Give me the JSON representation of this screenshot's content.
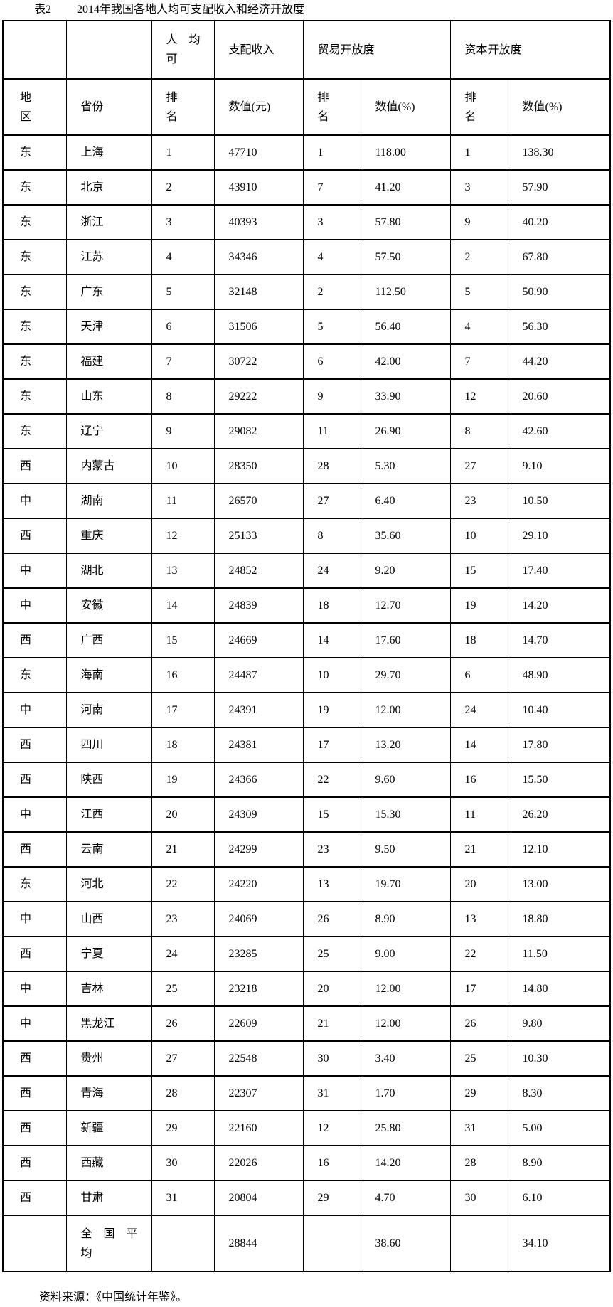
{
  "title": {
    "label": "表2",
    "text": "2014年我国各地人均可支配收入和经济开放度"
  },
  "table": {
    "header_top": {
      "income_part1": "人　均\n可",
      "income_part2": "支配收入",
      "trade": "贸易开放度",
      "capital": "资本开放度"
    },
    "header": {
      "region": "地\n区",
      "province": "省份",
      "rank": "排\n名",
      "value_yuan": "数值(元)",
      "value_pct": "数值(%)"
    },
    "rows": [
      {
        "region": "东",
        "province": "上海",
        "income_rank": "1",
        "income_value": "47710",
        "trade_rank": "1",
        "trade_value": "118.00",
        "capital_rank": "1",
        "capital_value": "138.30"
      },
      {
        "region": "东",
        "province": "北京",
        "income_rank": "2",
        "income_value": "43910",
        "trade_rank": "7",
        "trade_value": "41.20",
        "capital_rank": "3",
        "capital_value": "57.90"
      },
      {
        "region": "东",
        "province": "浙江",
        "income_rank": "3",
        "income_value": "40393",
        "trade_rank": "3",
        "trade_value": "57.80",
        "capital_rank": "9",
        "capital_value": "40.20"
      },
      {
        "region": "东",
        "province": "江苏",
        "income_rank": "4",
        "income_value": "34346",
        "trade_rank": "4",
        "trade_value": "57.50",
        "capital_rank": "2",
        "capital_value": "67.80"
      },
      {
        "region": "东",
        "province": "广东",
        "income_rank": "5",
        "income_value": "32148",
        "trade_rank": "2",
        "trade_value": "112.50",
        "capital_rank": "5",
        "capital_value": "50.90"
      },
      {
        "region": "东",
        "province": "天津",
        "income_rank": "6",
        "income_value": "31506",
        "trade_rank": "5",
        "trade_value": "56.40",
        "capital_rank": "4",
        "capital_value": "56.30"
      },
      {
        "region": "东",
        "province": "福建",
        "income_rank": "7",
        "income_value": "30722",
        "trade_rank": "6",
        "trade_value": "42.00",
        "capital_rank": "7",
        "capital_value": "44.20"
      },
      {
        "region": "东",
        "province": "山东",
        "income_rank": "8",
        "income_value": "29222",
        "trade_rank": "9",
        "trade_value": "33.90",
        "capital_rank": "12",
        "capital_value": "20.60"
      },
      {
        "region": "东",
        "province": "辽宁",
        "income_rank": "9",
        "income_value": "29082",
        "trade_rank": "11",
        "trade_value": "26.90",
        "capital_rank": "8",
        "capital_value": "42.60"
      },
      {
        "region": "西",
        "province": "内蒙古",
        "income_rank": "10",
        "income_value": "28350",
        "trade_rank": "28",
        "trade_value": "5.30",
        "capital_rank": "27",
        "capital_value": "9.10"
      },
      {
        "region": "中",
        "province": "湖南",
        "income_rank": "11",
        "income_value": "26570",
        "trade_rank": "27",
        "trade_value": "6.40",
        "capital_rank": "23",
        "capital_value": "10.50"
      },
      {
        "region": "西",
        "province": "重庆",
        "income_rank": "12",
        "income_value": "25133",
        "trade_rank": "8",
        "trade_value": "35.60",
        "capital_rank": "10",
        "capital_value": "29.10"
      },
      {
        "region": "中",
        "province": "湖北",
        "income_rank": "13",
        "income_value": "24852",
        "trade_rank": "24",
        "trade_value": "9.20",
        "capital_rank": "15",
        "capital_value": "17.40"
      },
      {
        "region": "中",
        "province": "安徽",
        "income_rank": "14",
        "income_value": "24839",
        "trade_rank": "18",
        "trade_value": "12.70",
        "capital_rank": "19",
        "capital_value": "14.20"
      },
      {
        "region": "西",
        "province": "广西",
        "income_rank": "15",
        "income_value": "24669",
        "trade_rank": "14",
        "trade_value": "17.60",
        "capital_rank": "18",
        "capital_value": "14.70"
      },
      {
        "region": "东",
        "province": "海南",
        "income_rank": "16",
        "income_value": "24487",
        "trade_rank": "10",
        "trade_value": "29.70",
        "capital_rank": "6",
        "capital_value": "48.90"
      },
      {
        "region": "中",
        "province": "河南",
        "income_rank": "17",
        "income_value": "24391",
        "trade_rank": "19",
        "trade_value": "12.00",
        "capital_rank": "24",
        "capital_value": "10.40"
      },
      {
        "region": "西",
        "province": "四川",
        "income_rank": "18",
        "income_value": "24381",
        "trade_rank": "17",
        "trade_value": "13.20",
        "capital_rank": "14",
        "capital_value": "17.80"
      },
      {
        "region": "西",
        "province": "陕西",
        "income_rank": "19",
        "income_value": "24366",
        "trade_rank": "22",
        "trade_value": "9.60",
        "capital_rank": "16",
        "capital_value": "15.50"
      },
      {
        "region": "中",
        "province": "江西",
        "income_rank": "20",
        "income_value": "24309",
        "trade_rank": "15",
        "trade_value": "15.30",
        "capital_rank": "11",
        "capital_value": "26.20"
      },
      {
        "region": "西",
        "province": "云南",
        "income_rank": "21",
        "income_value": "24299",
        "trade_rank": "23",
        "trade_value": "9.50",
        "capital_rank": "21",
        "capital_value": "12.10"
      },
      {
        "region": "东",
        "province": "河北",
        "income_rank": "22",
        "income_value": "24220",
        "trade_rank": "13",
        "trade_value": "19.70",
        "capital_rank": "20",
        "capital_value": "13.00"
      },
      {
        "region": "中",
        "province": "山西",
        "income_rank": "23",
        "income_value": "24069",
        "trade_rank": "26",
        "trade_value": "8.90",
        "capital_rank": "13",
        "capital_value": "18.80"
      },
      {
        "region": "西",
        "province": "宁夏",
        "income_rank": "24",
        "income_value": "23285",
        "trade_rank": "25",
        "trade_value": "9.00",
        "capital_rank": "22",
        "capital_value": "11.50"
      },
      {
        "region": "中",
        "province": "吉林",
        "income_rank": "25",
        "income_value": "23218",
        "trade_rank": "20",
        "trade_value": "12.00",
        "capital_rank": "17",
        "capital_value": "14.80"
      },
      {
        "region": "中",
        "province": "黑龙江",
        "income_rank": "26",
        "income_value": "22609",
        "trade_rank": "21",
        "trade_value": "12.00",
        "capital_rank": "26",
        "capital_value": "9.80"
      },
      {
        "region": "西",
        "province": "贵州",
        "income_rank": "27",
        "income_value": "22548",
        "trade_rank": "30",
        "trade_value": "3.40",
        "capital_rank": "25",
        "capital_value": "10.30"
      },
      {
        "region": "西",
        "province": "青海",
        "income_rank": "28",
        "income_value": "22307",
        "trade_rank": "31",
        "trade_value": "1.70",
        "capital_rank": "29",
        "capital_value": "8.30"
      },
      {
        "region": "西",
        "province": "新疆",
        "income_rank": "29",
        "income_value": "22160",
        "trade_rank": "12",
        "trade_value": "25.80",
        "capital_rank": "31",
        "capital_value": "5.00"
      },
      {
        "region": "西",
        "province": "西藏",
        "income_rank": "30",
        "income_value": "22026",
        "trade_rank": "16",
        "trade_value": "14.20",
        "capital_rank": "28",
        "capital_value": "8.90"
      },
      {
        "region": "西",
        "province": "甘肃",
        "income_rank": "31",
        "income_value": "20804",
        "trade_rank": "29",
        "trade_value": "4.70",
        "capital_rank": "30",
        "capital_value": "6.10"
      }
    ],
    "average_row": {
      "label": "全　国　平\n均",
      "income_value": "28844",
      "trade_value": "38.60",
      "capital_value": "34.10"
    }
  },
  "footer": {
    "source": "资料来源：《中国统计年鉴》。"
  }
}
